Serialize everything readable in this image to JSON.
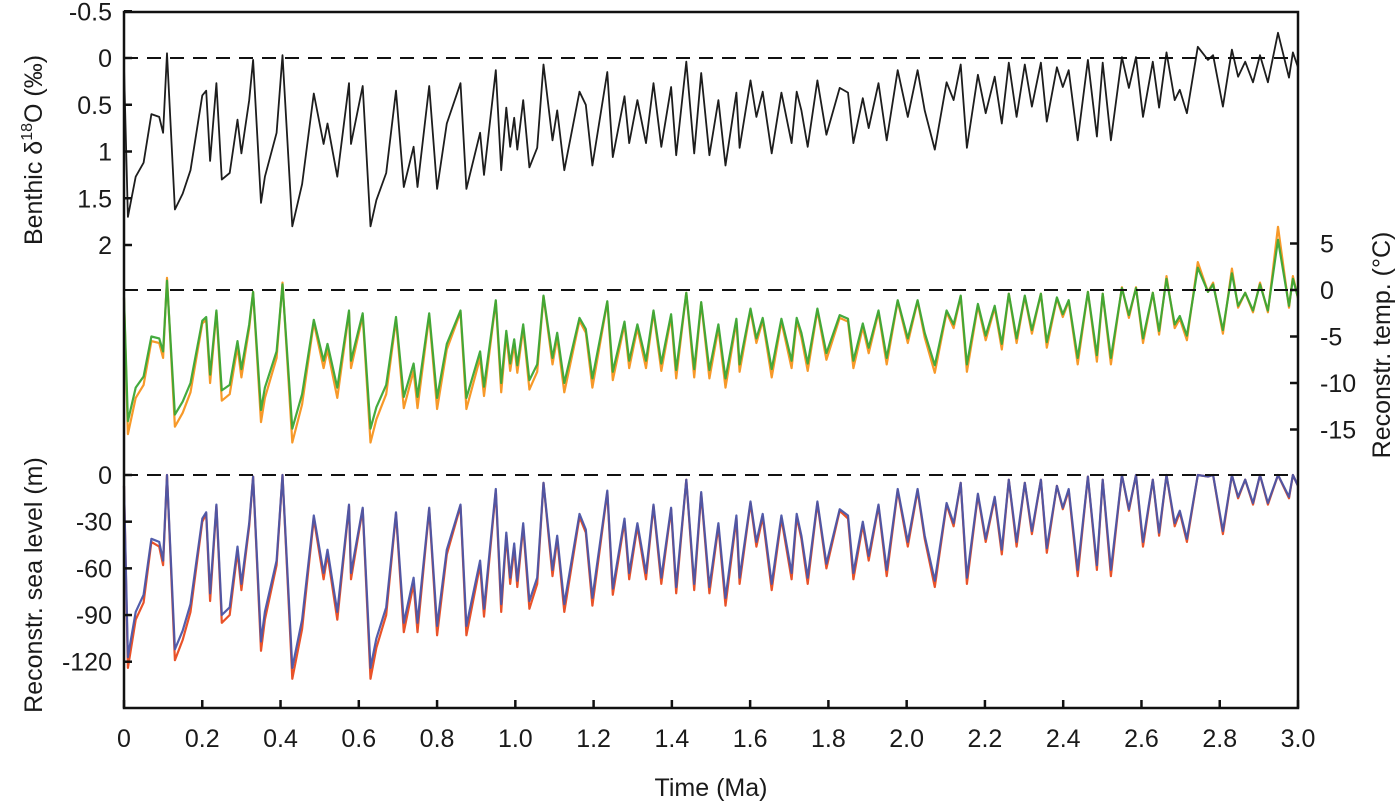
{
  "chart_data": {
    "type": "line",
    "xlabel": "Time (Ma)",
    "xlim": [
      0,
      3.0
    ],
    "x_ticks": [
      "0",
      "0.2",
      "0.4",
      "0.6",
      "0.8",
      "1.0",
      "1.2",
      "1.4",
      "1.6",
      "1.8",
      "2.0",
      "2.2",
      "2.4",
      "2.6",
      "2.8",
      "3.0"
    ],
    "x": [
      0,
      0.01,
      0.03,
      0.05,
      0.07,
      0.09,
      0.1,
      0.11,
      0.13,
      0.15,
      0.17,
      0.2,
      0.21,
      0.22,
      0.236,
      0.25,
      0.27,
      0.29,
      0.3,
      0.32,
      0.33,
      0.35,
      0.36,
      0.39,
      0.405,
      0.43,
      0.455,
      0.485,
      0.51,
      0.52,
      0.545,
      0.575,
      0.58,
      0.61,
      0.63,
      0.645,
      0.67,
      0.695,
      0.715,
      0.74,
      0.75,
      0.78,
      0.8,
      0.825,
      0.86,
      0.875,
      0.91,
      0.92,
      0.95,
      0.964,
      0.977,
      0.987,
      0.997,
      1.005,
      1.02,
      1.036,
      1.056,
      1.072,
      1.095,
      1.107,
      1.125,
      1.164,
      1.18,
      1.197,
      1.235,
      1.249,
      1.279,
      1.291,
      1.312,
      1.334,
      1.353,
      1.373,
      1.398,
      1.411,
      1.437,
      1.457,
      1.475,
      1.496,
      1.519,
      1.537,
      1.565,
      1.573,
      1.601,
      1.616,
      1.632,
      1.655,
      1.68,
      1.706,
      1.719,
      1.731,
      1.747,
      1.772,
      1.795,
      1.829,
      1.85,
      1.864,
      1.888,
      1.903,
      1.928,
      1.949,
      1.977,
      2.003,
      2.028,
      2.046,
      2.072,
      2.102,
      2.12,
      2.138,
      2.154,
      2.182,
      2.202,
      2.225,
      2.243,
      2.261,
      2.281,
      2.302,
      2.32,
      2.343,
      2.358,
      2.384,
      2.399,
      2.414,
      2.437,
      2.463,
      2.486,
      2.501,
      2.522,
      2.55,
      2.568,
      2.586,
      2.604,
      2.629,
      2.645,
      2.664,
      2.685,
      2.698,
      2.716,
      2.744,
      2.77,
      2.783,
      2.808,
      2.831,
      2.847,
      2.865,
      2.885,
      2.903,
      2.923,
      2.949,
      2.977,
      2.987,
      3.0
    ],
    "panels": [
      {
        "id": "d18o",
        "ylabel": {
          "prefix": "Benthic δ",
          "sup": "18",
          "suffix": "O (‰)"
        },
        "axis_side": "left",
        "ylim": [
          2,
          -0.5
        ],
        "inverted": true,
        "y_ticks": [
          -0.5,
          0,
          0.5,
          1,
          1.5,
          2
        ],
        "y_tick_labels": [
          "-0.5",
          "0",
          "0.5",
          "1",
          "1.5",
          "2"
        ],
        "reference_line": 0,
        "series": [
          {
            "color": "#111111",
            "values": [
              0.1,
              1.7,
              1.27,
              1.12,
              0.6,
              0.63,
              0.8,
              -0.05,
              1.62,
              1.45,
              1.2,
              0.4,
              0.35,
              1.1,
              0.27,
              1.3,
              1.23,
              0.66,
              1.02,
              0.45,
              0.02,
              1.55,
              1.27,
              0.8,
              -0.03,
              1.8,
              1.35,
              0.38,
              0.92,
              0.7,
              1.27,
              0.27,
              0.92,
              0.3,
              1.8,
              1.52,
              1.23,
              0.35,
              1.38,
              0.95,
              1.38,
              0.3,
              1.4,
              0.7,
              0.27,
              1.4,
              0.8,
              1.25,
              0.13,
              1.2,
              0.53,
              0.95,
              0.64,
              0.98,
              0.45,
              1.17,
              0.96,
              0.07,
              0.88,
              0.56,
              1.2,
              0.36,
              0.5,
              1.15,
              0.15,
              1.06,
              0.41,
              0.91,
              0.45,
              0.91,
              0.27,
              0.95,
              0.31,
              1.04,
              0.04,
              1.02,
              0.16,
              1.04,
              0.45,
              1.15,
              0.37,
              0.96,
              0.24,
              0.63,
              0.36,
              1.02,
              0.37,
              0.91,
              0.36,
              0.56,
              0.95,
              0.24,
              0.82,
              0.32,
              0.37,
              0.91,
              0.43,
              0.75,
              0.27,
              0.88,
              0.13,
              0.63,
              0.13,
              0.56,
              0.98,
              0.26,
              0.45,
              0.07,
              0.96,
              0.18,
              0.59,
              0.2,
              0.7,
              0.05,
              0.63,
              0.07,
              0.52,
              0.05,
              0.68,
              0.1,
              0.31,
              0.13,
              0.88,
              0.02,
              0.84,
              0.05,
              0.88,
              -0.01,
              0.32,
              -0.01,
              0.63,
              0.04,
              0.53,
              -0.06,
              0.45,
              0.34,
              0.59,
              -0.12,
              0.02,
              -0.03,
              0.52,
              -0.09,
              0.2,
              0.04,
              0.26,
              -0.03,
              0.26,
              -0.27,
              0.21,
              -0.06,
              0.1
            ]
          }
        ]
      },
      {
        "id": "temp",
        "ylabel": "Reconstr. temp. (°C)",
        "axis_side": "right",
        "ylim": [
          -15,
          5
        ],
        "y_ticks": [
          5,
          0,
          -5,
          -10,
          -15
        ],
        "y_tick_labels": [
          "5",
          "0",
          "-5",
          "-10",
          "-15"
        ],
        "reference_line": 0,
        "series": [
          {
            "color": "#f7941d",
            "values": [
              -0.9,
              -15.5,
              -11.6,
              -10.2,
              -5.5,
              -5.7,
              -7.3,
              1.3,
              -14.7,
              -13.2,
              -11.0,
              -3.6,
              -3.2,
              -10.0,
              -2.4,
              -11.9,
              -11.2,
              -6.1,
              -9.4,
              -4.1,
              -0.2,
              -14.2,
              -11.6,
              -7.3,
              0.8,
              -16.4,
              -12.3,
              -3.5,
              -8.4,
              -6.4,
              -11.6,
              -2.4,
              -8.4,
              -2.8,
              -16.4,
              -13.9,
              -11.2,
              -3.2,
              -12.7,
              -8.7,
              -12.7,
              -2.8,
              -12.8,
              -6.4,
              -2.4,
              -12.8,
              -7.3,
              -11.4,
              -1.2,
              -11.0,
              -4.8,
              -8.7,
              -5.8,
              -8.9,
              -4.1,
              -10.7,
              -8.8,
              -0.7,
              -8.0,
              -5.1,
              -11.0,
              -3.3,
              -4.6,
              -10.5,
              -1.3,
              -9.7,
              -3.7,
              -8.4,
              -4.1,
              -8.4,
              -2.4,
              -8.7,
              -2.9,
              -9.5,
              -0.3,
              -9.4,
              -1.4,
              -9.5,
              -4.1,
              -10.5,
              -3.4,
              -8.8,
              -2.2,
              -5.7,
              -3.3,
              -9.4,
              -3.4,
              -8.4,
              -3.3,
              -5.1,
              -8.7,
              -2.2,
              -7.5,
              -3.0,
              -3.4,
              -8.4,
              -4.0,
              -6.8,
              -2.4,
              -8.0,
              -1.2,
              -5.7,
              -1.2,
              -5.1,
              -8.9,
              -2.4,
              -4.1,
              -0.7,
              -8.8,
              -1.7,
              -5.4,
              -1.9,
              -6.4,
              -0.4,
              -5.7,
              -0.7,
              -4.7,
              -0.4,
              -6.2,
              -0.9,
              -2.9,
              -1.2,
              -8.0,
              -0.2,
              -7.7,
              -0.4,
              -8.0,
              0.3,
              -3.0,
              0.3,
              -5.7,
              -0.3,
              -4.8,
              1.5,
              -4.1,
              -3.1,
              -5.4,
              3.0,
              -0.2,
              0.8,
              -4.7,
              2.3,
              -1.9,
              -0.3,
              -2.4,
              0.8,
              -2.4,
              6.8,
              -1.9,
              1.5,
              -0.9
            ]
          },
          {
            "color": "#3aa635",
            "values": [
              -0.8,
              -14.1,
              -10.5,
              -9.3,
              -5.0,
              -5.2,
              -6.6,
              1.0,
              -13.4,
              -12.0,
              -10.0,
              -3.3,
              -2.9,
              -9.1,
              -2.2,
              -10.8,
              -10.2,
              -5.5,
              -8.5,
              -3.7,
              -0.2,
              -12.9,
              -10.5,
              -6.6,
              0.6,
              -14.9,
              -11.2,
              -3.2,
              -7.6,
              -5.8,
              -10.5,
              -2.2,
              -7.6,
              -2.5,
              -14.9,
              -12.6,
              -10.2,
              -2.9,
              -11.5,
              -7.9,
              -11.5,
              -2.5,
              -11.6,
              -5.8,
              -2.2,
              -11.6,
              -6.6,
              -10.4,
              -1.1,
              -10.0,
              -4.4,
              -7.9,
              -5.3,
              -8.1,
              -3.7,
              -9.7,
              -8.0,
              -0.6,
              -7.3,
              -4.6,
              -10.0,
              -3.0,
              -4.2,
              -9.5,
              -1.2,
              -8.8,
              -3.4,
              -7.6,
              -3.7,
              -7.6,
              -2.2,
              -7.9,
              -2.6,
              -8.6,
              -0.3,
              -8.5,
              -1.3,
              -8.6,
              -3.7,
              -9.5,
              -3.1,
              -8.0,
              -2.0,
              -5.2,
              -3.0,
              -8.5,
              -3.1,
              -7.6,
              -3.0,
              -4.6,
              -7.9,
              -2.0,
              -6.8,
              -2.7,
              -3.1,
              -7.6,
              -3.6,
              -6.2,
              -2.2,
              -7.3,
              -1.1,
              -5.2,
              -1.1,
              -4.6,
              -8.1,
              -2.2,
              -3.7,
              -0.6,
              -8.0,
              -1.5,
              -4.9,
              -1.7,
              -5.8,
              -0.4,
              -5.2,
              -0.6,
              -4.3,
              -0.4,
              -5.6,
              -0.8,
              -2.6,
              -1.1,
              -7.3,
              -0.2,
              -7.0,
              -0.4,
              -7.3,
              0.2,
              -2.7,
              0.2,
              -5.2,
              -0.3,
              -4.4,
              1.2,
              -3.7,
              -2.8,
              -4.9,
              2.4,
              -0.2,
              0.6,
              -4.3,
              1.8,
              -1.7,
              -0.3,
              -2.2,
              0.6,
              -2.2,
              5.4,
              -1.7,
              1.2,
              -0.8
            ]
          }
        ]
      },
      {
        "id": "sealevel",
        "ylabel": "Reconstr. sea level (m)",
        "axis_side": "left",
        "ylim": [
          -145,
          0
        ],
        "y_ticks": [
          0,
          -30,
          -60,
          -90,
          -120
        ],
        "y_tick_labels": [
          "0",
          "-30",
          "-60",
          "-90",
          "-120"
        ],
        "reference_line": 0,
        "series": [
          {
            "color": "#e8491d",
            "values": [
              -7,
              -124,
              -93,
              -82,
              -43,
              -46,
              -58,
              0,
              -119,
              -106,
              -88,
              -30,
              -25,
              -81,
              -20,
              -95,
              -90,
              -49,
              -74,
              -33,
              -1,
              -113,
              -93,
              -58,
              0,
              -131,
              -99,
              -28,
              -67,
              -51,
              -93,
              -20,
              -67,
              -22,
              -131,
              -111,
              -90,
              -25,
              -101,
              -70,
              -101,
              -22,
              -103,
              -51,
              -20,
              -103,
              -58,
              -91,
              -10,
              -88,
              -39,
              -70,
              -47,
              -72,
              -33,
              -86,
              -70,
              -5,
              -65,
              -41,
              -88,
              -27,
              -37,
              -84,
              -11,
              -77,
              -30,
              -67,
              -33,
              -67,
              -20,
              -70,
              -22,
              -76,
              -3,
              -74,
              -12,
              -76,
              -33,
              -84,
              -28,
              -70,
              -18,
              -46,
              -27,
              -74,
              -28,
              -67,
              -27,
              -41,
              -70,
              -18,
              -60,
              -23,
              -28,
              -67,
              -32,
              -55,
              -20,
              -65,
              -10,
              -46,
              -10,
              -41,
              -72,
              -19,
              -33,
              -5,
              -70,
              -13,
              -43,
              -15,
              -51,
              -3,
              -46,
              -5,
              -38,
              -3,
              -50,
              -7,
              -22,
              -10,
              -65,
              -1,
              -61,
              -3,
              -65,
              0,
              -23,
              0,
              -46,
              -3,
              -39,
              0,
              -33,
              -24,
              -43,
              0,
              -1,
              0,
              -38,
              0,
              -15,
              -3,
              -19,
              0,
              -19,
              0,
              -15,
              0,
              -7
            ]
          },
          {
            "color": "#4a55a8",
            "values": [
              -7,
              -117,
              -88,
              -77,
              -41,
              -43,
              -55,
              0,
              -112,
              -100,
              -83,
              -28,
              -24,
              -76,
              -19,
              -90,
              -85,
              -46,
              -70,
              -31,
              -1,
              -107,
              -88,
              -55,
              0,
              -124,
              -93,
              -26,
              -63,
              -48,
              -88,
              -19,
              -63,
              -21,
              -124,
              -105,
              -85,
              -24,
              -95,
              -66,
              -95,
              -21,
              -97,
              -48,
              -19,
              -97,
              -55,
              -86,
              -9,
              -83,
              -37,
              -66,
              -44,
              -68,
              -31,
              -81,
              -66,
              -5,
              -61,
              -39,
              -83,
              -25,
              -35,
              -79,
              -10,
              -73,
              -28,
              -63,
              -31,
              -63,
              -19,
              -66,
              -21,
              -72,
              -3,
              -70,
              -11,
              -72,
              -31,
              -79,
              -26,
              -66,
              -17,
              -43,
              -25,
              -70,
              -26,
              -63,
              -25,
              -39,
              -66,
              -17,
              -57,
              -22,
              -26,
              -63,
              -30,
              -52,
              -19,
              -61,
              -9,
              -43,
              -9,
              -39,
              -68,
              -18,
              -31,
              -5,
              -66,
              -12,
              -41,
              -14,
              -48,
              -3,
              -43,
              -5,
              -36,
              -3,
              -47,
              -7,
              -21,
              -9,
              -61,
              -1,
              -58,
              -3,
              -61,
              0,
              -22,
              0,
              -43,
              -3,
              -37,
              0,
              -31,
              -23,
              -41,
              0,
              -1,
              0,
              -36,
              0,
              -14,
              -3,
              -18,
              0,
              -18,
              0,
              -14,
              0,
              -7
            ]
          }
        ]
      }
    ],
    "grid": false,
    "legend": "none"
  }
}
